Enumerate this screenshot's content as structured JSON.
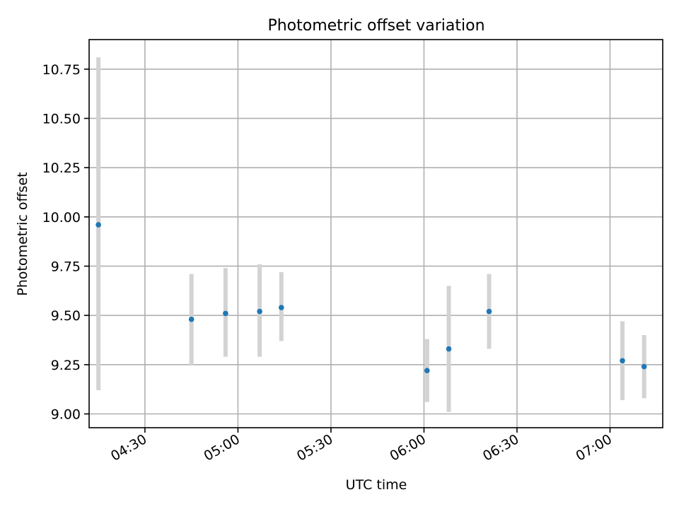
{
  "chart_data": {
    "type": "scatter",
    "title": "Photometric offset variation",
    "xlabel": "UTC time",
    "ylabel": "Photometric offset",
    "x_ticks": [
      "04:30",
      "05:00",
      "05:30",
      "06:00",
      "06:30",
      "07:00"
    ],
    "y_ticks": [
      "9.00",
      "9.25",
      "9.50",
      "9.75",
      "10.00",
      "10.25",
      "10.50",
      "10.75"
    ],
    "xlim": [
      "04:12",
      "07:17"
    ],
    "ylim": [
      8.93,
      10.9
    ],
    "grid": true,
    "marker_color": "#1f77b4",
    "errorbar_color": "#d3d3d3",
    "points": [
      {
        "time": "04:15",
        "y": 9.96,
        "ylow": 9.12,
        "yhigh": 10.81
      },
      {
        "time": "04:45",
        "y": 9.48,
        "ylow": 9.25,
        "yhigh": 9.71
      },
      {
        "time": "04:56",
        "y": 9.51,
        "ylow": 9.29,
        "yhigh": 9.74
      },
      {
        "time": "05:07",
        "y": 9.52,
        "ylow": 9.29,
        "yhigh": 9.76
      },
      {
        "time": "05:14",
        "y": 9.54,
        "ylow": 9.37,
        "yhigh": 9.72
      },
      {
        "time": "06:01",
        "y": 9.22,
        "ylow": 9.06,
        "yhigh": 9.38
      },
      {
        "time": "06:08",
        "y": 9.33,
        "ylow": 9.01,
        "yhigh": 9.65
      },
      {
        "time": "06:21",
        "y": 9.52,
        "ylow": 9.33,
        "yhigh": 9.71
      },
      {
        "time": "07:04",
        "y": 9.27,
        "ylow": 9.07,
        "yhigh": 9.47
      },
      {
        "time": "07:11",
        "y": 9.24,
        "ylow": 9.08,
        "yhigh": 9.4
      }
    ]
  }
}
